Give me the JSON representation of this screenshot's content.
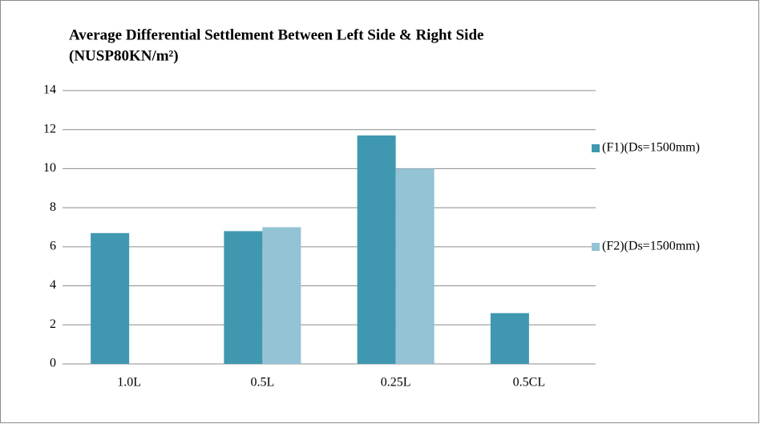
{
  "chart_data": {
    "type": "bar",
    "title": [
      "Average Differential Settlement Between Left Side & Right Side",
      "(NUSP80KN/m²)"
    ],
    "categories": [
      "1.0L",
      "0.5L",
      "0.25L",
      "0.5CL"
    ],
    "series": [
      {
        "name": "(F1)(Ds=1500mm)",
        "color": "#3f98b0",
        "values": [
          6.7,
          6.8,
          11.7,
          2.6
        ]
      },
      {
        "name": "(F2)(Ds=1500mm)",
        "color": "#93c3d5",
        "values": [
          null,
          7.0,
          10.0,
          null
        ]
      }
    ],
    "ylim": [
      0,
      14
    ],
    "yticks": [
      0,
      2,
      4,
      6,
      8,
      10,
      12,
      14
    ],
    "grid": true,
    "legend": "right"
  }
}
